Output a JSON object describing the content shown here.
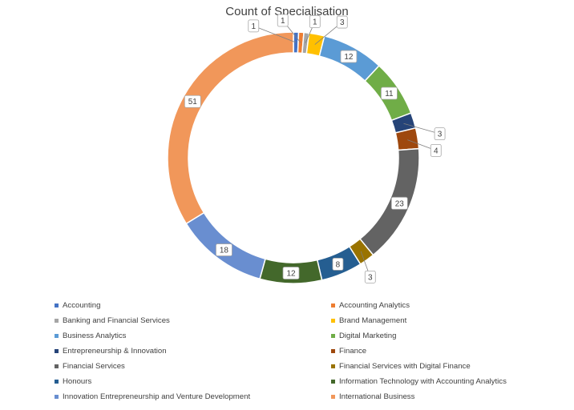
{
  "chart_data": {
    "type": "pie",
    "style": "donut",
    "title": "Count of Specialisation",
    "legend_position": "bottom",
    "categories": [
      "Accounting",
      "Accounting Analytics",
      "Banking and Financial Services",
      "Brand Management",
      "Business Analytics",
      "Digital Marketing",
      "Entrepreneurship & Innovation",
      "Finance",
      "Financial Services",
      "Financial Services with Digital Finance",
      "Honours",
      "Information Technology with Accounting Analytics",
      "Innovation Entrepreneurship and Venture Development",
      "International Business"
    ],
    "values": [
      1,
      1,
      1,
      3,
      12,
      11,
      3,
      4,
      23,
      3,
      8,
      12,
      18,
      51
    ],
    "data_labels": [
      "1",
      "1",
      "1",
      "3",
      "12",
      "11",
      "3",
      "4",
      "23",
      "3",
      "8",
      "12",
      "18",
      "51"
    ],
    "colors": [
      "#4472C4",
      "#ED7D31",
      "#A5A5A5",
      "#FFC000",
      "#5B9BD5",
      "#70AD47",
      "#264478",
      "#9E480E",
      "#636363",
      "#997300",
      "#255E91",
      "#43682B",
      "#698ED0",
      "#F1975A"
    ]
  }
}
